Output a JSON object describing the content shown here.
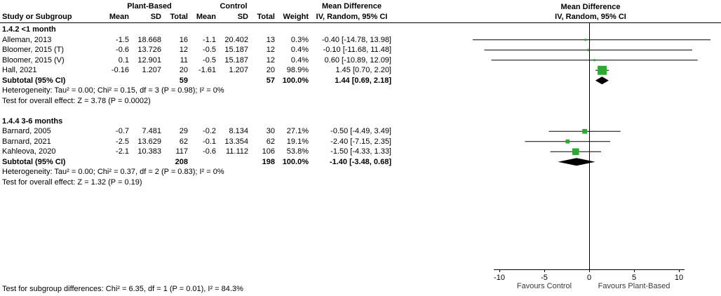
{
  "header": {
    "group1": "Plant-Based",
    "group2": "Control",
    "col_study": "Study or Subgroup",
    "col_mean": "Mean",
    "col_sd": "SD",
    "col_total": "Total",
    "col_weight": "Weight",
    "col_md": "Mean Difference",
    "col_ci": "IV, Random, 95% CI"
  },
  "footer": {
    "subgroup_diff": "Test for subgroup differences: Chi² = 6.35, df = 1 (P = 0.01), I² = 84.3%"
  },
  "chart_data": {
    "type": "forest",
    "effect_measure": "Mean Difference",
    "model": "IV, Random, 95% CI",
    "axis": {
      "min": -10,
      "max": 10,
      "ticks": [
        -10,
        -5,
        0,
        5,
        10
      ],
      "favours_left": "Favours Control",
      "favours_right": "Favours Plant-Based"
    },
    "colors": {
      "marker": "#2EA82E",
      "diamond": "#000000",
      "line": "#000000"
    },
    "subtotal_label": "Subtotal (95% CI)",
    "subgroups": [
      {
        "title": "1.4.2 <1 month",
        "studies": [
          {
            "study": "Alleman, 2013",
            "mean1": "-1.5",
            "sd1": "18.668",
            "total1": "16",
            "mean2": "-1.1",
            "sd2": "20.402",
            "total2": "13",
            "weight": "0.3%",
            "weight_pct": 0.3,
            "ci_label": "-0.40 [-14.78, 13.98]",
            "est": -0.4,
            "lo": -14.78,
            "hi": 13.98
          },
          {
            "study": "Bloomer, 2015 (T)",
            "mean1": "-0.6",
            "sd1": "13.726",
            "total1": "12",
            "mean2": "-0.5",
            "sd2": "15.187",
            "total2": "12",
            "weight": "0.4%",
            "weight_pct": 0.4,
            "ci_label": "-0.10 [-11.68, 11.48]",
            "est": -0.1,
            "lo": -11.68,
            "hi": 11.48
          },
          {
            "study": "Bloomer, 2015 (V)",
            "mean1": "0.1",
            "sd1": "12.901",
            "total1": "11",
            "mean2": "-0.5",
            "sd2": "15.187",
            "total2": "12",
            "weight": "0.4%",
            "weight_pct": 0.4,
            "ci_label": "0.60 [-10.89, 12.09]",
            "est": 0.6,
            "lo": -10.89,
            "hi": 12.09
          },
          {
            "study": "Hall, 2021",
            "mean1": "-0.16",
            "sd1": "1.207",
            "total1": "20",
            "mean2": "-1.61",
            "sd2": "1.207",
            "total2": "20",
            "weight": "98.9%",
            "weight_pct": 98.9,
            "ci_label": "1.45 [0.70, 2.20]",
            "est": 1.45,
            "lo": 0.7,
            "hi": 2.2
          }
        ],
        "subtotal": {
          "total1": "59",
          "total2": "57",
          "weight": "100.0%",
          "ci_label": "1.44 [0.69, 2.18]",
          "est": 1.44,
          "lo": 0.69,
          "hi": 2.18
        },
        "heterogeneity": "Heterogeneity: Tau² = 0.00; Chi² = 0.15, df = 3 (P = 0.98); I² = 0%",
        "overall_effect": "Test for overall effect: Z = 3.78 (P = 0.0002)"
      },
      {
        "title": "1.4.4 3-6 months",
        "studies": [
          {
            "study": "Barnard, 2005",
            "mean1": "-0.7",
            "sd1": "7.481",
            "total1": "29",
            "mean2": "-0.2",
            "sd2": "8.134",
            "total2": "30",
            "weight": "27.1%",
            "weight_pct": 27.1,
            "ci_label": "-0.50 [-4.49, 3.49]",
            "est": -0.5,
            "lo": -4.49,
            "hi": 3.49
          },
          {
            "study": "Barnard, 2021",
            "mean1": "-2.5",
            "sd1": "13.629",
            "total1": "62",
            "mean2": "-0.1",
            "sd2": "13.354",
            "total2": "62",
            "weight": "19.1%",
            "weight_pct": 19.1,
            "ci_label": "-2.40 [-7.15, 2.35]",
            "est": -2.4,
            "lo": -7.15,
            "hi": 2.35
          },
          {
            "study": "Kahleova, 2020",
            "mean1": "-2.1",
            "sd1": "10.383",
            "total1": "117",
            "mean2": "-0.6",
            "sd2": "11.112",
            "total2": "106",
            "weight": "53.8%",
            "weight_pct": 53.8,
            "ci_label": "-1.50 [-4.33, 1.33]",
            "est": -1.5,
            "lo": -4.33,
            "hi": 1.33
          }
        ],
        "subtotal": {
          "total1": "208",
          "total2": "198",
          "weight": "100.0%",
          "ci_label": "-1.40 [-3.48, 0.68]",
          "est": -1.4,
          "lo": -3.48,
          "hi": 0.68
        },
        "heterogeneity": "Heterogeneity: Tau² = 0.00; Chi² = 0.37, df = 2 (P = 0.83); I² = 0%",
        "overall_effect": "Test for overall effect: Z = 1.32 (P = 0.19)"
      }
    ]
  }
}
